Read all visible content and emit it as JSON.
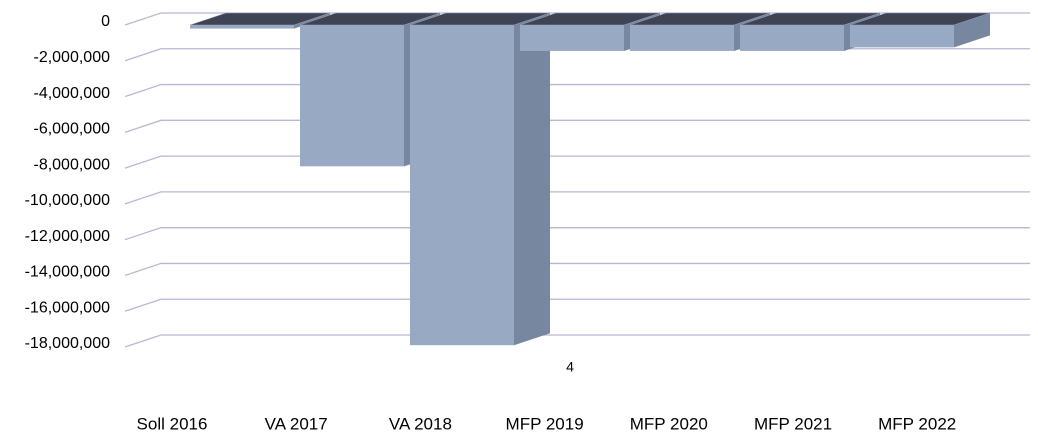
{
  "chart_data": {
    "type": "bar3d",
    "categories": [
      "Soll 2016",
      "VA 2017",
      "VA 2018",
      "MFP 2019",
      "MFP 2020",
      "MFP 2021",
      "MFP 2022"
    ],
    "values": [
      -200000,
      -7900000,
      -17900000,
      -1450000,
      -1450000,
      -1450000,
      -1250000
    ],
    "color": "#98a9c3",
    "side_color": "#76879f",
    "top_color": "#3e4454",
    "grid_color": "#b9b7d3",
    "ylim": [
      -18000000,
      0
    ],
    "yticks": [
      0,
      {
        "value": -2000000,
        "label": "-2,000,000"
      },
      {
        "value": -4000000,
        "label": "-4,000,000"
      },
      {
        "value": -6000000,
        "label": "-6,000,000"
      },
      {
        "value": -8000000,
        "label": "-8,000,000"
      },
      {
        "value": -10000000,
        "label": "-10,000,000"
      },
      {
        "value": -12000000,
        "label": "-12,000,000"
      },
      {
        "value": -14000000,
        "label": "-14,000,000"
      },
      {
        "value": -16000000,
        "label": "-16,000,000"
      },
      {
        "value": -18000000,
        "label": "-18,000,000"
      }
    ],
    "grid": true,
    "annotation": "4"
  }
}
